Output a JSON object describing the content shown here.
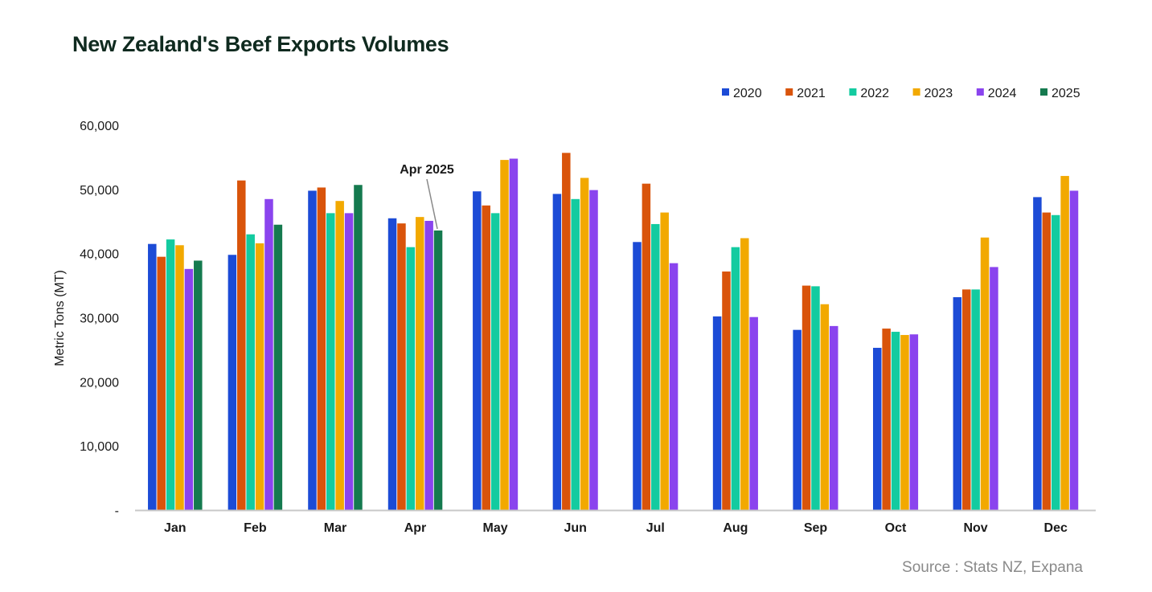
{
  "title": "New Zealand's Beef Exports Volumes",
  "source": "Source : Stats NZ, Expana",
  "chart_data": {
    "type": "bar",
    "title": "New Zealand's Beef Exports Volumes",
    "xlabel": "",
    "ylabel": "Metric Tons (MT)",
    "ylim": [
      0,
      60000
    ],
    "yticks": [
      0,
      10000,
      20000,
      30000,
      40000,
      50000,
      60000
    ],
    "ytick_labels": [
      "-",
      "10,000",
      "20,000",
      "30,000",
      "40,000",
      "50,000",
      "60,000"
    ],
    "grid": false,
    "legend_position": "top-right",
    "categories": [
      "Jan",
      "Feb",
      "Mar",
      "Apr",
      "May",
      "Jun",
      "Jul",
      "Aug",
      "Sep",
      "Oct",
      "Nov",
      "Dec"
    ],
    "series": [
      {
        "name": "2020",
        "color": "#1c4bd6",
        "values": [
          41500,
          39800,
          49800,
          45500,
          49700,
          49300,
          41800,
          30200,
          28100,
          25300,
          33200,
          48800
        ]
      },
      {
        "name": "2021",
        "color": "#d9540b",
        "values": [
          39500,
          51400,
          50300,
          44700,
          47500,
          55700,
          50900,
          37200,
          35000,
          28300,
          34400,
          46400
        ]
      },
      {
        "name": "2022",
        "color": "#13cba0",
        "values": [
          42200,
          43000,
          46300,
          41000,
          46300,
          48500,
          44600,
          41000,
          34900,
          27800,
          34400,
          46000
        ]
      },
      {
        "name": "2023",
        "color": "#f2a900",
        "values": [
          41300,
          41600,
          48200,
          45700,
          54600,
          51800,
          46400,
          42400,
          32100,
          27300,
          42500,
          52100
        ]
      },
      {
        "name": "2024",
        "color": "#8a44ee",
        "values": [
          37600,
          48500,
          46300,
          45100,
          54800,
          49900,
          38500,
          30100,
          28700,
          27400,
          37900,
          49800
        ]
      },
      {
        "name": "2025",
        "color": "#157a4f",
        "values": [
          38900,
          44500,
          50700,
          43600,
          null,
          null,
          null,
          null,
          null,
          null,
          null,
          null
        ]
      }
    ],
    "annotations": [
      {
        "text": "Apr 2025",
        "category": "Apr",
        "series": "2025",
        "value": 43600
      }
    ]
  }
}
